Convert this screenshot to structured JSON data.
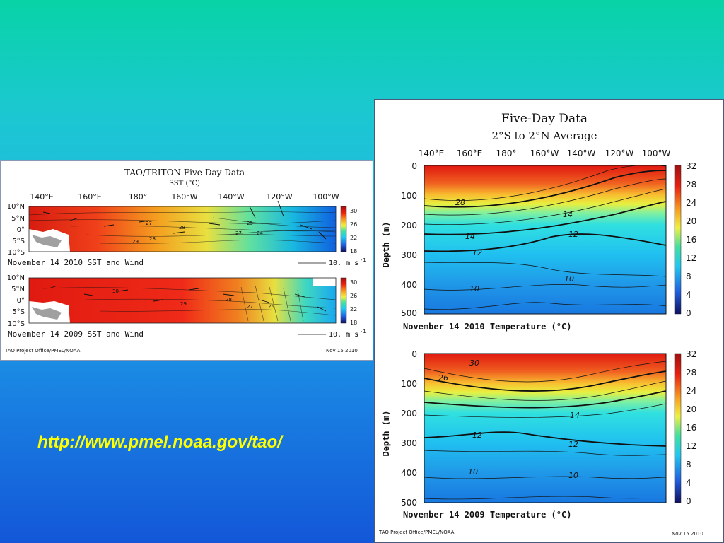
{
  "sst_panel": {
    "title": "TAO/TRITON Five-Day Data",
    "subtitle": "SST (°C)",
    "lon_labels": [
      "140°E",
      "160°E",
      "180°",
      "160°W",
      "140°W",
      "120°W",
      "100°W"
    ],
    "lat_labels": [
      "10°N",
      "5°N",
      "0°",
      "5°S",
      "10°S"
    ],
    "colorbar_labels": [
      "30",
      "26",
      "22",
      "18"
    ],
    "map_2010": {
      "caption": "November 14 2010 SST and Wind",
      "contour_labels": [
        "27",
        "28",
        "29",
        "28",
        "25",
        "24",
        "27"
      ],
      "scale_label": "10. m s",
      "scale_exp": "-1"
    },
    "map_2009": {
      "caption": "November 14 2009 SST and Wind",
      "contour_labels": [
        "30",
        "29",
        "28",
        "27",
        "26"
      ],
      "scale_label": "10. m s",
      "scale_exp": "-1"
    },
    "footer_left": "TAO Project Office/PMEL/NOAA",
    "footer_right": "Nov 15 2010"
  },
  "depth_panel": {
    "title": "Five-Day Data",
    "subtitle": "2°S to 2°N Average",
    "lon_labels": [
      "140°E",
      "160°E",
      "180°",
      "160°W",
      "140°W",
      "120°W",
      "100°W"
    ],
    "depth_labels": [
      "0",
      "100",
      "200",
      "300",
      "400",
      "500"
    ],
    "ylabel": "Depth (m)",
    "colorbar_labels": [
      "32",
      "28",
      "24",
      "20",
      "16",
      "12",
      "8",
      "4",
      "0"
    ],
    "section_2010": {
      "caption": "November 14 2010 Temperature (°C)",
      "contour_labels": [
        "28",
        "14",
        "14",
        "12",
        "12",
        "10",
        "10"
      ]
    },
    "section_2009": {
      "caption": "November 14 2009 Temperature (°C)",
      "contour_labels": [
        "30",
        "26",
        "14",
        "12",
        "12",
        "10",
        "10"
      ]
    },
    "footer_left": "TAO Project Office/PMEL/NOAA",
    "footer_right": "Nov 15 2010"
  },
  "link": {
    "text": "http://www.pmel.noaa.gov/tao/"
  }
}
